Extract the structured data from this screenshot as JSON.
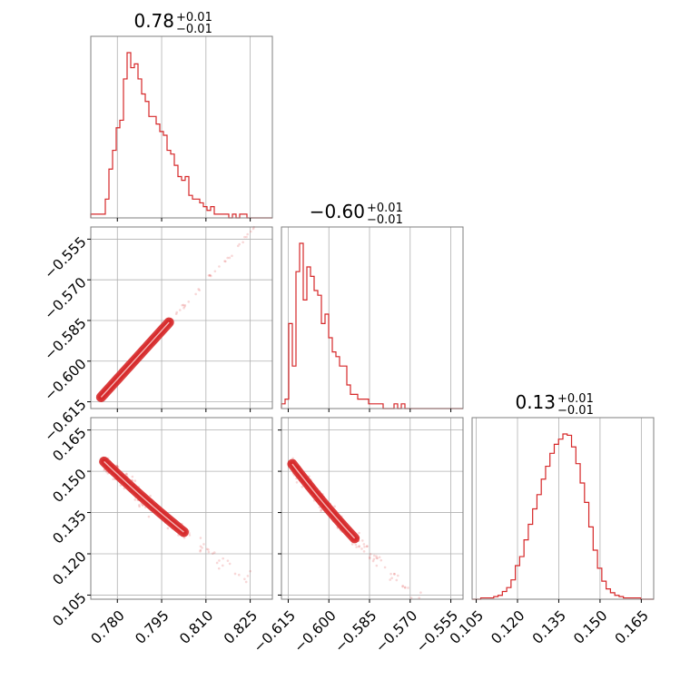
{
  "chart_data": {
    "type": "corner",
    "color": "#d62728",
    "parameters": [
      {
        "title_value": "0.78",
        "title_plus": "+0.01",
        "title_minus": "−0.01",
        "range": [
          0.771,
          0.8325
        ],
        "ticks": [
          0.78,
          0.795,
          0.81,
          0.825
        ],
        "tick_labels": [
          "0.780",
          "0.795",
          "0.810",
          "0.825"
        ],
        "hist_bins": [
          0.771,
          0.8325
        ],
        "hist_values": [
          1,
          1,
          1,
          1,
          5,
          13,
          18,
          24,
          26,
          37,
          44,
          40,
          41,
          37,
          33,
          31,
          27,
          27,
          25,
          23,
          22,
          18,
          17,
          14,
          11,
          10,
          11,
          6,
          5,
          5,
          4,
          3,
          2,
          3,
          1,
          1,
          1,
          1,
          0,
          1,
          0,
          1,
          1,
          0,
          0,
          0,
          0,
          0,
          0,
          0
        ]
      },
      {
        "title_value": "−0.60",
        "title_plus": "+0.01",
        "title_minus": "−0.01",
        "range": [
          -0.6175,
          -0.5505
        ],
        "ticks": [
          -0.615,
          -0.6,
          -0.585,
          -0.57,
          -0.555
        ],
        "tick_labels": [
          "−0.615",
          "−0.600",
          "−0.585",
          "−0.570",
          "−0.555"
        ],
        "hist_bins": [
          -0.6175,
          -0.5505
        ],
        "hist_values": [
          1,
          2,
          18,
          9,
          29,
          35,
          23,
          30,
          28,
          25,
          24,
          18,
          20,
          15,
          12,
          11,
          9,
          9,
          5,
          3,
          3,
          2,
          2,
          2,
          1,
          1,
          1,
          1,
          0,
          0,
          0,
          1,
          0,
          1,
          0,
          0,
          0,
          0,
          0,
          0,
          0,
          0,
          0,
          0,
          0,
          0,
          0,
          0,
          0,
          0
        ]
      },
      {
        "title_value": "0.13",
        "title_plus": "+0.01",
        "title_minus": "−0.01",
        "range": [
          0.1035,
          0.1695
        ],
        "ticks": [
          0.105,
          0.12,
          0.135,
          0.15,
          0.165
        ],
        "tick_labels": [
          "0.105",
          "0.120",
          "0.135",
          "0.150",
          "0.165"
        ],
        "hist_bins": [
          0.1035,
          0.1695
        ],
        "hist_values": [
          0,
          0,
          1,
          1,
          1,
          2,
          3,
          6,
          9,
          15,
          26,
          33,
          46,
          58,
          70,
          81,
          93,
          103,
          113,
          120,
          124,
          128,
          127,
          118,
          105,
          90,
          75,
          56,
          38,
          24,
          14,
          8,
          5,
          3,
          2,
          1,
          1,
          1,
          1,
          0,
          0,
          0
        ]
      }
    ],
    "pairs": [
      {
        "x_param": 0,
        "y_param": 1,
        "relation": "y = -0.6145 + 1.2*(x - 0.7735)",
        "x_sample_range": [
          0.774,
          0.826
        ]
      },
      {
        "x_param": 0,
        "y_param": 2,
        "relation": "y decreasing with x, 0.152 at 0.777 to 0.120 at 0.812"
      },
      {
        "x_param": 1,
        "y_param": 2,
        "relation": "y decreasing with x, 0.152 at -0.613 to 0.120 at -0.585"
      }
    ],
    "grid": true
  }
}
